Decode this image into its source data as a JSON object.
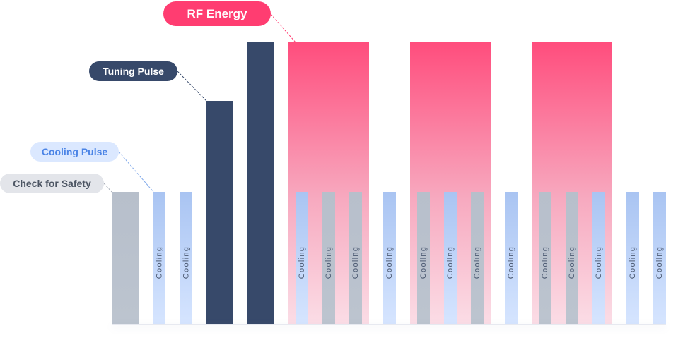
{
  "labels": {
    "check_for_safety": "Check for Safety",
    "cooling_pulse": "Cooling Pulse",
    "tuning_pulse": "Tuning Pulse",
    "rf_energy": "RF Energy"
  },
  "bar_text": "Cooling",
  "colors": {
    "safety_gray": "#b8c0cc",
    "cooling_top": "#a9c4f2",
    "cooling_bottom": "#d6e5ff",
    "tuning_navy": "#37496a",
    "rf_pink_top": "#ff4d7d",
    "rf_pink_bottom": "#fbdde6",
    "safety_pill_bg": "#e3e5ea",
    "cooling_pill_bg": "#dbe8ff",
    "leader_blue": "#7fa8ea",
    "leader_navy": "#37496a",
    "leader_pink": "#ff3d71",
    "leader_gray": "#a7adb8"
  },
  "pulse_sequence": [
    {
      "kind": "safety"
    },
    {
      "kind": "cooling",
      "text": "Cooling"
    },
    {
      "kind": "cooling",
      "text": "Cooling"
    },
    {
      "kind": "tuning"
    },
    {
      "kind": "tuning"
    },
    {
      "kind": "rf-window"
    },
    {
      "kind": "cooling",
      "text": "Cooling"
    },
    {
      "kind": "safety-narrow",
      "text": "Cooling"
    },
    {
      "kind": "safety-narrow",
      "text": "Cooling"
    },
    {
      "kind": "cooling",
      "text": "Cooling"
    },
    {
      "kind": "rf-window"
    },
    {
      "kind": "safety-narrow",
      "text": "Cooling"
    },
    {
      "kind": "cooling",
      "text": "Cooling"
    },
    {
      "kind": "safety-narrow",
      "text": "Cooling"
    },
    {
      "kind": "cooling",
      "text": "Cooling"
    },
    {
      "kind": "rf-window"
    },
    {
      "kind": "safety-narrow",
      "text": "Cooling"
    },
    {
      "kind": "safety-narrow",
      "text": "Cooling"
    },
    {
      "kind": "cooling",
      "text": "Cooling"
    },
    {
      "kind": "cooling",
      "text": "Cooling"
    },
    {
      "kind": "cooling",
      "text": "Cooling"
    }
  ]
}
